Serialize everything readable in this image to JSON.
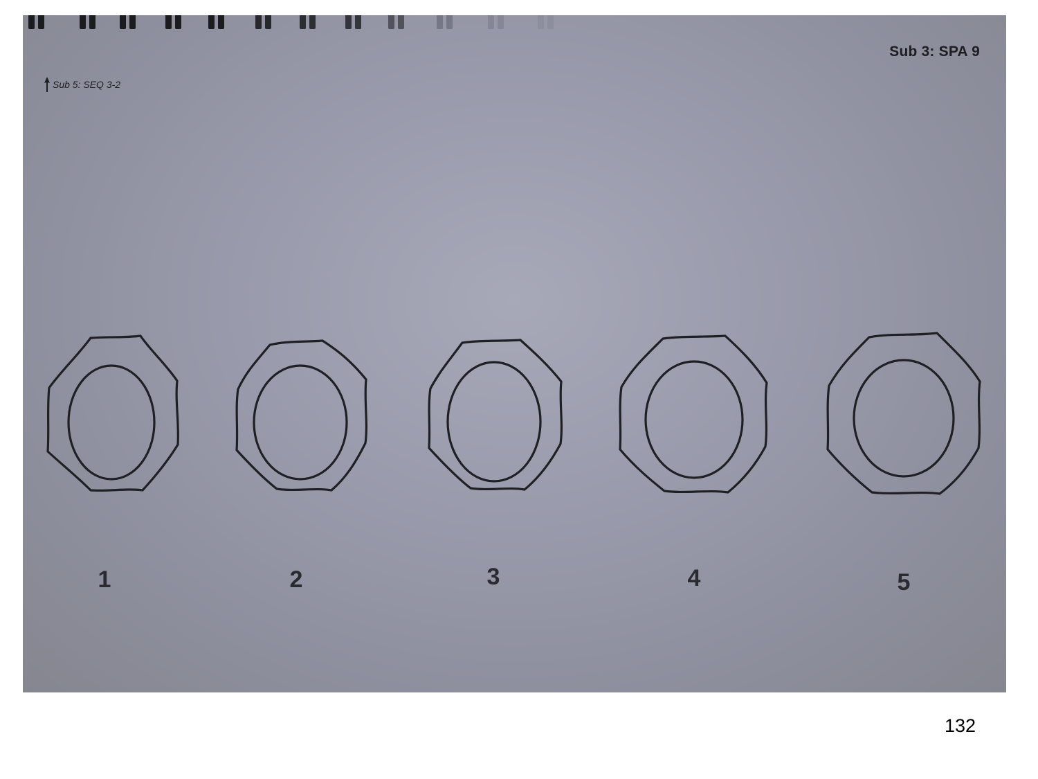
{
  "header": {
    "right_label": "Sub 3: SPA 9",
    "left_label": "Sub 5: SEQ 3-2",
    "left_icon": "arrow-up-icon"
  },
  "figures": [
    {
      "number": "1"
    },
    {
      "number": "2"
    },
    {
      "number": "3"
    },
    {
      "number": "4"
    },
    {
      "number": "5"
    }
  ],
  "footer": {
    "page_number": "132"
  },
  "colors": {
    "ink": "#1d1d22",
    "paper": "#9a9bac"
  }
}
